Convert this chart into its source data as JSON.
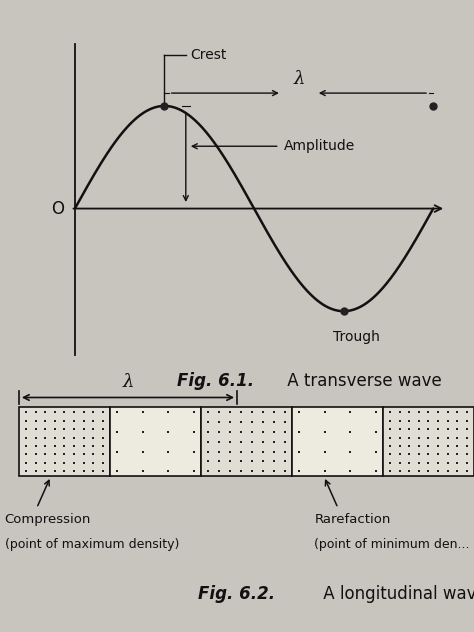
{
  "bg_color": "#c8c4be",
  "fig_width": 4.74,
  "fig_height": 6.32,
  "wave_color": "#111111",
  "axis_color": "#111111",
  "dot_color": "#222222",
  "title1_bold": "Fig. 6.1.",
  "title1_normal": " A transverse wave",
  "title2_bold": "Fig. 6.2.",
  "title2_normal": " A longitudinal wave",
  "label_crest": "Crest",
  "label_trough": "Trough",
  "label_amplitude": "Amplitude",
  "label_lambda": "λ",
  "label_O": "O",
  "label_compression1": "Compression",
  "label_compression2": "(point of maximum density)",
  "label_rarefaction1": "Rarefaction",
  "label_rarefaction2": "(point of minimum den...",
  "box_densities": [
    9,
    4,
    8,
    4,
    9
  ],
  "box_color_dense": "#e0ddd5",
  "box_color_sparse": "#edeae0"
}
